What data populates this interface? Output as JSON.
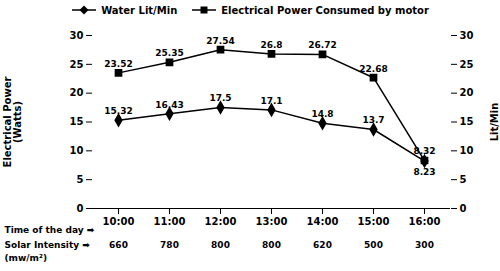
{
  "chart_data": {
    "type": "line",
    "categories": [
      "10:00",
      "11:00",
      "12:00",
      "13:00",
      "14:00",
      "15:00",
      "16:00"
    ],
    "xlabel": "Time of the day ➡",
    "ylabel": "Electrical Power\n(Watts)",
    "y2label": "Lit/Min",
    "series": [
      {
        "name": "Water Lit/Min",
        "color": "black",
        "marker": "diamond",
        "axis": "y",
        "values": [
          15.32,
          16.43,
          17.5,
          17.1,
          14.8,
          13.7,
          8.23
        ]
      },
      {
        "name": "Electrical Power Consumed by motor",
        "color": "black",
        "marker": "square",
        "axis": "y2",
        "values": [
          23.52,
          25.35,
          27.54,
          26.8,
          26.72,
          22.68,
          8.32
        ]
      }
    ],
    "ylim": [
      0,
      30
    ],
    "yticks": [
      0,
      5,
      10,
      15,
      20,
      25,
      30
    ],
    "y2lim": [
      0,
      30
    ],
    "y2ticks": [
      0,
      5,
      10,
      15,
      20,
      25,
      30
    ],
    "data_labels": true,
    "legend": "top",
    "grid": false,
    "solar_intensity": {
      "label": "Solar Intensity ➡",
      "unit": "(mw/m²)",
      "values": [
        660,
        780,
        800,
        800,
        620,
        500,
        300
      ]
    }
  }
}
